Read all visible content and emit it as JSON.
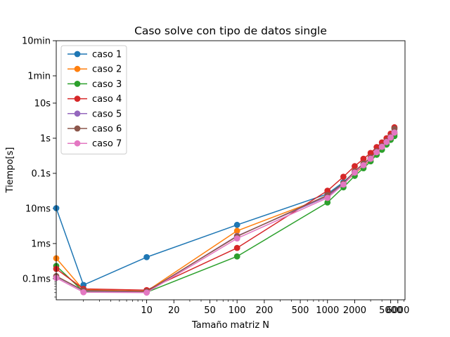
{
  "chart_data": {
    "type": "line",
    "title": "Caso solve con tipo de datos single",
    "xlabel": "Tamaño matriz N",
    "ylabel": "Tiempo[s]",
    "xscale": "log",
    "yscale": "log",
    "xlim": [
      1.0,
      7200
    ],
    "ylim": [
      2.5e-05,
      600
    ],
    "xticks": [
      {
        "value": 10,
        "label": "10"
      },
      {
        "value": 20,
        "label": "20"
      },
      {
        "value": 50,
        "label": "50"
      },
      {
        "value": 100,
        "label": "100"
      },
      {
        "value": 200,
        "label": "200"
      },
      {
        "value": 500,
        "label": "500"
      },
      {
        "value": 1000,
        "label": "1000"
      },
      {
        "value": 2000,
        "label": "2000"
      },
      {
        "value": 5000,
        "label": "5000"
      },
      {
        "value": 6000,
        "label": "6000"
      }
    ],
    "yticks": [
      {
        "value": 0.0001,
        "label": "0.1ms"
      },
      {
        "value": 0.001,
        "label": "1ms"
      },
      {
        "value": 0.01,
        "label": "10ms"
      },
      {
        "value": 0.1,
        "label": "0.1s"
      },
      {
        "value": 1,
        "label": "1s"
      },
      {
        "value": 10,
        "label": "10s"
      },
      {
        "value": 60,
        "label": "1min"
      },
      {
        "value": 600,
        "label": "10min"
      }
    ],
    "legend_position": "top-left",
    "grid": false,
    "x": [
      1,
      2,
      10,
      100,
      1000,
      1500,
      2000,
      2500,
      3000,
      3500,
      4000,
      4500,
      5000,
      5500
    ],
    "series": [
      {
        "name": "caso 1",
        "color": "#1f77b4",
        "values": [
          0.0102,
          6.6e-05,
          0.00041,
          0.0034,
          0.026,
          0.056,
          0.11,
          0.17,
          0.26,
          0.4,
          0.56,
          0.78,
          1.0,
          1.3
        ]
      },
      {
        "name": "caso 2",
        "color": "#ff7f0e",
        "values": [
          0.00038,
          4.8e-05,
          4.4e-05,
          0.0023,
          0.022,
          0.05,
          0.1,
          0.16,
          0.25,
          0.38,
          0.55,
          0.76,
          1.0,
          1.35
        ]
      },
      {
        "name": "caso 3",
        "color": "#2ca02c",
        "values": [
          0.00023,
          4.3e-05,
          4.1e-05,
          0.00043,
          0.0148,
          0.04,
          0.085,
          0.14,
          0.22,
          0.34,
          0.47,
          0.66,
          0.9,
          1.15
        ]
      },
      {
        "name": "caso 4",
        "color": "#d62728",
        "values": [
          0.00019,
          5.1e-05,
          4.7e-05,
          0.00075,
          0.032,
          0.08,
          0.16,
          0.26,
          0.38,
          0.56,
          0.76,
          1.0,
          1.35,
          2.05
        ]
      },
      {
        "name": "caso 5",
        "color": "#9467bd",
        "values": [
          0.000115,
          4.5e-05,
          4.2e-05,
          0.00165,
          0.022,
          0.05,
          0.11,
          0.18,
          0.27,
          0.41,
          0.58,
          0.8,
          1.08,
          1.5
        ]
      },
      {
        "name": "caso 6",
        "color": "#8c564b",
        "values": [
          0.000118,
          4.6e-05,
          4.3e-05,
          0.0016,
          0.024,
          0.052,
          0.115,
          0.19,
          0.28,
          0.43,
          0.6,
          0.83,
          1.12,
          1.85
        ]
      },
      {
        "name": "caso 7",
        "color": "#e377c2",
        "values": [
          0.000105,
          4.1e-05,
          4e-05,
          0.0014,
          0.02,
          0.048,
          0.105,
          0.17,
          0.26,
          0.4,
          0.57,
          0.78,
          1.05,
          1.45
        ]
      }
    ]
  }
}
